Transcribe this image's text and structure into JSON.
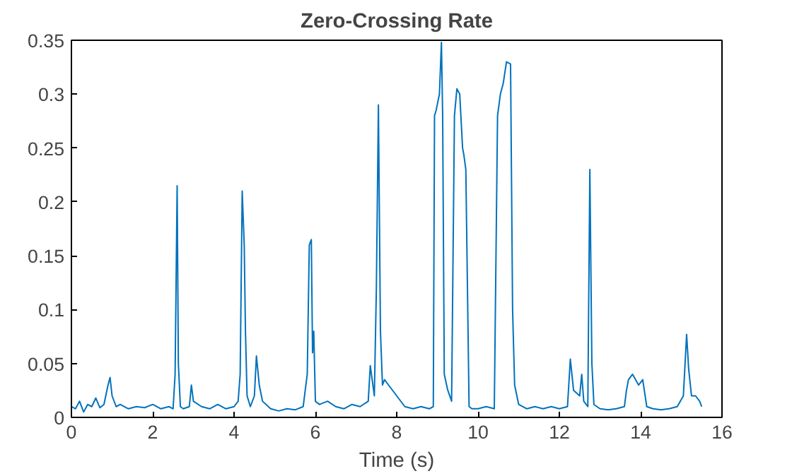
{
  "chart_data": {
    "type": "line",
    "title": "Zero-Crossing Rate",
    "xlabel": "Time (s)",
    "xlim": [
      0,
      16
    ],
    "ylim": [
      0,
      0.35
    ],
    "xticks": [
      0,
      2,
      4,
      6,
      8,
      10,
      12,
      14,
      16
    ],
    "yticks": [
      0,
      0.05,
      0.1,
      0.15,
      0.2,
      0.25,
      0.3,
      0.35
    ],
    "grid": false,
    "series": [
      {
        "color": "#0072bd",
        "x": [
          0,
          0.1,
          0.2,
          0.3,
          0.4,
          0.5,
          0.6,
          0.7,
          0.8,
          0.9,
          0.95,
          1.0,
          1.1,
          1.2,
          1.4,
          1.6,
          1.8,
          2.0,
          2.2,
          2.4,
          2.5,
          2.55,
          2.6,
          2.63,
          2.68,
          2.75,
          2.9,
          2.95,
          3.0,
          3.2,
          3.4,
          3.6,
          3.8,
          4.0,
          4.1,
          4.15,
          4.2,
          4.25,
          4.28,
          4.32,
          4.4,
          4.5,
          4.55,
          4.62,
          4.7,
          4.9,
          5.1,
          5.3,
          5.5,
          5.7,
          5.8,
          5.85,
          5.9,
          5.93,
          5.96,
          6.0,
          6.1,
          6.3,
          6.5,
          6.7,
          6.9,
          7.1,
          7.3,
          7.35,
          7.45,
          7.5,
          7.55,
          7.6,
          7.65,
          7.7,
          7.8,
          8.0,
          8.2,
          8.4,
          8.6,
          8.8,
          8.9,
          8.93,
          8.97,
          9.05,
          9.1,
          9.13,
          9.17,
          9.25,
          9.35,
          9.42,
          9.48,
          9.55,
          9.62,
          9.65,
          9.7,
          9.78,
          9.85,
          10.0,
          10.2,
          10.4,
          10.48,
          10.55,
          10.62,
          10.7,
          10.8,
          10.85,
          10.9,
          11.0,
          11.2,
          11.4,
          11.6,
          11.8,
          12.0,
          12.2,
          12.27,
          12.35,
          12.5,
          12.55,
          12.6,
          12.7,
          12.75,
          12.8,
          12.85,
          13.0,
          13.2,
          13.4,
          13.6,
          13.65,
          13.7,
          13.8,
          13.95,
          14.05,
          14.15,
          14.3,
          14.5,
          14.7,
          14.9,
          15.05,
          15.13,
          15.18,
          15.25,
          15.35,
          15.45,
          15.5
        ],
        "values": [
          0.01,
          0.008,
          0.015,
          0.005,
          0.012,
          0.01,
          0.018,
          0.009,
          0.012,
          0.03,
          0.037,
          0.02,
          0.01,
          0.012,
          0.008,
          0.01,
          0.009,
          0.012,
          0.008,
          0.01,
          0.008,
          0.04,
          0.215,
          0.05,
          0.01,
          0.008,
          0.01,
          0.03,
          0.015,
          0.01,
          0.008,
          0.012,
          0.008,
          0.01,
          0.015,
          0.04,
          0.21,
          0.16,
          0.08,
          0.02,
          0.01,
          0.02,
          0.057,
          0.03,
          0.015,
          0.008,
          0.006,
          0.008,
          0.007,
          0.01,
          0.04,
          0.16,
          0.165,
          0.06,
          0.08,
          0.015,
          0.012,
          0.015,
          0.01,
          0.008,
          0.012,
          0.01,
          0.015,
          0.048,
          0.02,
          0.12,
          0.29,
          0.08,
          0.03,
          0.035,
          0.03,
          0.02,
          0.01,
          0.008,
          0.01,
          0.008,
          0.01,
          0.28,
          0.285,
          0.3,
          0.348,
          0.28,
          0.04,
          0.026,
          0.015,
          0.28,
          0.305,
          0.3,
          0.25,
          0.244,
          0.23,
          0.01,
          0.008,
          0.008,
          0.01,
          0.008,
          0.28,
          0.3,
          0.31,
          0.33,
          0.328,
          0.1,
          0.03,
          0.012,
          0.008,
          0.01,
          0.008,
          0.01,
          0.008,
          0.01,
          0.054,
          0.025,
          0.02,
          0.04,
          0.015,
          0.01,
          0.23,
          0.05,
          0.012,
          0.008,
          0.007,
          0.008,
          0.01,
          0.025,
          0.035,
          0.04,
          0.03,
          0.035,
          0.01,
          0.008,
          0.007,
          0.008,
          0.01,
          0.02,
          0.077,
          0.045,
          0.02,
          0.02,
          0.015,
          0.01
        ]
      }
    ]
  }
}
